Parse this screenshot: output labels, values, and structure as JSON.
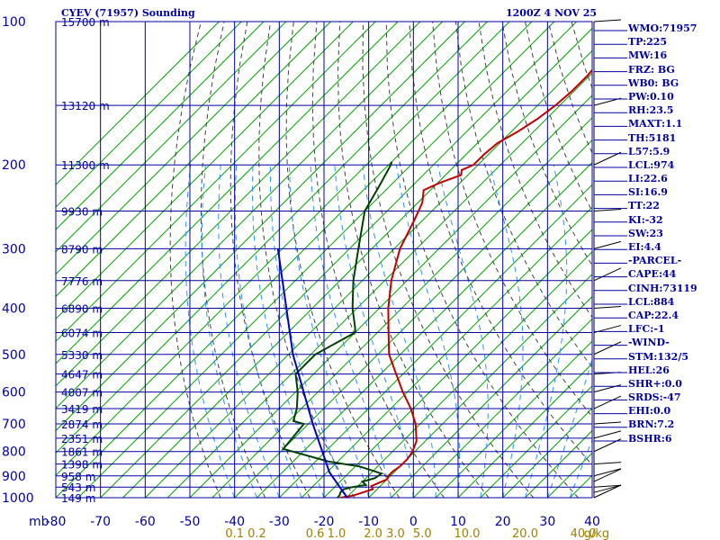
{
  "header": {
    "title": "CYEV (71957) Sounding",
    "valid_time": "1200Z  4 NOV 25"
  },
  "indices": [
    "WMO:71957",
    "TP:225",
    "MW:16",
    "FRZ: BG",
    "WB0: BG",
    "PW:0.10",
    "RH:23.5",
    "MAXT:1.1",
    "TH:5181",
    "L57:5.9",
    "LCL:974",
    "LI:22.6",
    "SI:16.9",
    "TT:22",
    "KI:-32",
    "SW:23",
    "EI:4.4",
    "-PARCEL-",
    "CAPE:44",
    "CINH:73119",
    "LCL:884",
    "CAP:22.4",
    "LFC:-1",
    "-WIND-",
    "STM:132/5",
    "HEL:26",
    "SHR+:0.0",
    "SRDS:-47",
    "EHI:0.0",
    "BRN:7.2",
    "BSHR:6"
  ],
  "colors": {
    "grid": "#0000a0",
    "isotherm": "#00a000",
    "dry_adiabat": "#404040",
    "moist_adiabat": "#3090ff",
    "mixing_ratio": "#a08000",
    "temperature": "#c00000",
    "dewpoint": "#004000",
    "parcel": "#0000c0",
    "text": "#0000a0"
  },
  "chart_data": {
    "type": "line",
    "title": "CYEV (71957) Sounding",
    "x_axis": {
      "units_label": "mb",
      "range": [
        -80,
        40
      ],
      "tick_labels": [
        "-80",
        "-70",
        "-60",
        "-50",
        "-40",
        "-30",
        "-20",
        "-10",
        "0",
        "10",
        "20",
        "30",
        "40"
      ]
    },
    "y_axis": {
      "scale": "log",
      "range": [
        1000,
        100
      ],
      "pressure_levels": [
        100,
        200,
        300,
        400,
        500,
        600,
        700,
        800,
        900,
        1000
      ],
      "height_labels": [
        {
          "p": 100,
          "label": "15700 m"
        },
        {
          "p": 150,
          "label": "13120 m"
        },
        {
          "p": 200,
          "label": "11300 m"
        },
        {
          "p": 250,
          "label": "9930 m"
        },
        {
          "p": 300,
          "label": "8790 m"
        },
        {
          "p": 350,
          "label": "7776 m"
        },
        {
          "p": 400,
          "label": "6890 m"
        },
        {
          "p": 450,
          "label": "6074 m"
        },
        {
          "p": 500,
          "label": "5330 m"
        },
        {
          "p": 550,
          "label": "4647 m"
        },
        {
          "p": 600,
          "label": "4007 m"
        },
        {
          "p": 650,
          "label": "3419 m"
        },
        {
          "p": 700,
          "label": "2874 m"
        },
        {
          "p": 750,
          "label": "2351 m"
        },
        {
          "p": 800,
          "label": "1861 m"
        },
        {
          "p": 850,
          "label": "1398 m"
        },
        {
          "p": 900,
          "label": "958 m"
        },
        {
          "p": 950,
          "label": "543 m"
        },
        {
          "p": 1000,
          "label": "149 m"
        }
      ]
    },
    "mixing_ratio_labels": [
      "0.1",
      "0.2",
      "0.6",
      "1.0",
      "2.0",
      "3.0",
      "5.0",
      "10.0",
      "20.0",
      "40.0",
      "g/kg"
    ],
    "mixing_ratio_positions": [
      -40,
      -35,
      -22,
      -17.2,
      -9,
      -4,
      2,
      12,
      25,
      38,
      41
    ],
    "grid": true,
    "series": [
      {
        "type": "temperature",
        "points": [
          {
            "p": 1000,
            "x": -16.3
          },
          {
            "p": 990,
            "x": -14
          },
          {
            "p": 975,
            "x": -12.5
          },
          {
            "p": 960,
            "x": -11
          },
          {
            "p": 945,
            "x": -12
          },
          {
            "p": 930,
            "x": -11
          },
          {
            "p": 915,
            "x": -10
          },
          {
            "p": 900,
            "x": -10.5
          },
          {
            "p": 880,
            "x": -10.5
          },
          {
            "p": 860,
            "x": -10
          },
          {
            "p": 830,
            "x": -10
          },
          {
            "p": 800,
            "x": -10.5
          },
          {
            "p": 760,
            "x": -12
          },
          {
            "p": 700,
            "x": -16
          },
          {
            "p": 650,
            "x": -20.5
          },
          {
            "p": 600,
            "x": -26
          },
          {
            "p": 550,
            "x": -31.5
          },
          {
            "p": 500,
            "x": -37.5
          },
          {
            "p": 450,
            "x": -42.5
          },
          {
            "p": 400,
            "x": -48
          },
          {
            "p": 350,
            "x": -53.5
          },
          {
            "p": 300,
            "x": -58.7
          },
          {
            "p": 260,
            "x": -62
          },
          {
            "p": 240,
            "x": -64
          },
          {
            "p": 226,
            "x": -66.5
          },
          {
            "p": 218,
            "x": -64.5
          },
          {
            "p": 210,
            "x": -61.5
          },
          {
            "p": 205,
            "x": -62.5
          },
          {
            "p": 200,
            "x": -61
          },
          {
            "p": 190,
            "x": -61
          },
          {
            "p": 180,
            "x": -60.5
          },
          {
            "p": 170,
            "x": -58.5
          },
          {
            "p": 160,
            "x": -57
          },
          {
            "p": 150,
            "x": -56
          },
          {
            "p": 140,
            "x": -55.5
          },
          {
            "p": 130,
            "x": -55.5
          },
          {
            "p": 120,
            "x": -56
          },
          {
            "p": 100,
            "x": -56
          }
        ]
      },
      {
        "type": "dewpoint",
        "points": [
          {
            "p": 1000,
            "x": -17
          },
          {
            "p": 990,
            "x": -17
          },
          {
            "p": 975,
            "x": -17.5
          },
          {
            "p": 960,
            "x": -17.5
          },
          {
            "p": 950,
            "x": -16
          },
          {
            "p": 940,
            "x": -13.5
          },
          {
            "p": 925,
            "x": -15
          },
          {
            "p": 910,
            "x": -13
          },
          {
            "p": 890,
            "x": -12.5
          },
          {
            "p": 860,
            "x": -19
          },
          {
            "p": 840,
            "x": -27
          },
          {
            "p": 790,
            "x": -40
          },
          {
            "p": 700,
            "x": -41
          },
          {
            "p": 690,
            "x": -44
          },
          {
            "p": 650,
            "x": -46
          },
          {
            "p": 600,
            "x": -49.5
          },
          {
            "p": 550,
            "x": -54
          },
          {
            "p": 500,
            "x": -54
          },
          {
            "p": 450,
            "x": -50
          },
          {
            "p": 440,
            "x": -51
          },
          {
            "p": 400,
            "x": -56
          },
          {
            "p": 350,
            "x": -62
          },
          {
            "p": 300,
            "x": -68
          },
          {
            "p": 250,
            "x": -75
          },
          {
            "p": 220,
            "x": -77.5
          },
          {
            "p": 200,
            "x": -79.5
          },
          {
            "p": 197,
            "x": -80
          }
        ]
      },
      {
        "type": "parcel",
        "points": [
          {
            "p": 1000,
            "x": -14.8
          },
          {
            "p": 884,
            "x": -24.5
          },
          {
            "p": 700,
            "x": -39
          },
          {
            "p": 500,
            "x": -59
          },
          {
            "p": 300,
            "x": -86
          }
        ]
      }
    ]
  }
}
